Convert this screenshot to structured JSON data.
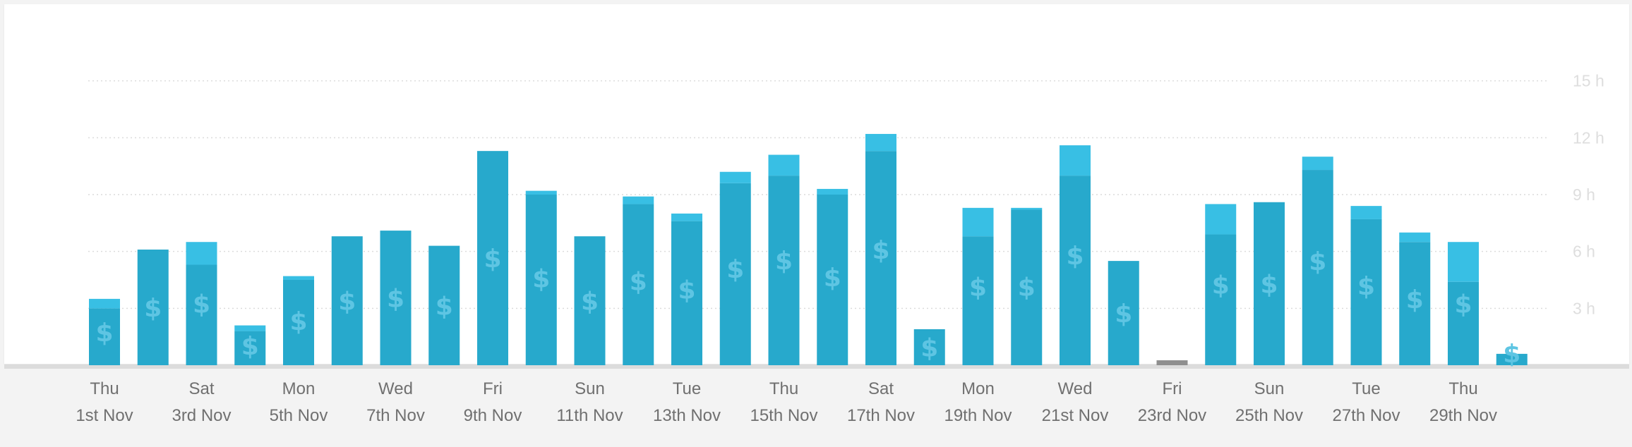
{
  "colors": {
    "billable": "#27a9cc",
    "non_billable": "#38bfe4",
    "empty_day": "#8f8f8f",
    "panel": "#ffffff",
    "background": "#f3f3f3",
    "grid": "#dcdcdc",
    "tick_text": "#707070",
    "y_tick_text": "#dedede"
  },
  "icons": {
    "billable_marker": "dollar-sign-icon"
  },
  "chart_data": {
    "type": "bar",
    "stacked": true,
    "grid": true,
    "ylim": [
      0,
      18
    ],
    "y_ticks": [
      3,
      6,
      9,
      12,
      15
    ],
    "y_tick_labels": [
      "3 h",
      "6 h",
      "9 h",
      "12 h",
      "15 h"
    ],
    "y_axis_position": "right",
    "dates": [
      "2018-11-01",
      "2018-11-02",
      "2018-11-03",
      "2018-11-04",
      "2018-11-05",
      "2018-11-06",
      "2018-11-07",
      "2018-11-08",
      "2018-11-09",
      "2018-11-10",
      "2018-11-11",
      "2018-11-12",
      "2018-11-13",
      "2018-11-14",
      "2018-11-15",
      "2018-11-16",
      "2018-11-17",
      "2018-11-18",
      "2018-11-19",
      "2018-11-20",
      "2018-11-21",
      "2018-11-22",
      "2018-11-23",
      "2018-11-24",
      "2018-11-25",
      "2018-11-26",
      "2018-11-27",
      "2018-11-28",
      "2018-11-29",
      "2018-11-30"
    ],
    "x_tick_labels": [
      {
        "day": "Thu",
        "date": "1st Nov"
      },
      {
        "day": "Sat",
        "date": "3rd Nov"
      },
      {
        "day": "Mon",
        "date": "5th Nov"
      },
      {
        "day": "Wed",
        "date": "7th Nov"
      },
      {
        "day": "Fri",
        "date": "9th Nov"
      },
      {
        "day": "Sun",
        "date": "11th Nov"
      },
      {
        "day": "Tue",
        "date": "13th Nov"
      },
      {
        "day": "Thu",
        "date": "15th Nov"
      },
      {
        "day": "Sat",
        "date": "17th Nov"
      },
      {
        "day": "Mon",
        "date": "19th Nov"
      },
      {
        "day": "Wed",
        "date": "21st Nov"
      },
      {
        "day": "Fri",
        "date": "23rd Nov"
      },
      {
        "day": "Sun",
        "date": "25th Nov"
      },
      {
        "day": "Tue",
        "date": "27th Nov"
      },
      {
        "day": "Thu",
        "date": "29th Nov"
      }
    ],
    "series": [
      {
        "values": [
          3.0,
          6.1,
          5.3,
          1.8,
          4.5,
          6.8,
          7.1,
          6.3,
          11.3,
          9.0,
          6.8,
          8.5,
          7.6,
          9.6,
          10.0,
          9.0,
          11.3,
          1.9,
          6.8,
          8.2,
          10.0,
          5.5,
          0,
          6.9,
          8.6,
          10.3,
          7.7,
          6.5,
          4.4,
          0.6
        ]
      },
      {
        "values": [
          0.5,
          0,
          1.2,
          0.3,
          0.2,
          0,
          0,
          0,
          0,
          0.2,
          0,
          0.4,
          0.4,
          0.6,
          1.1,
          0.3,
          0.9,
          0,
          1.5,
          0.1,
          1.6,
          0,
          0,
          1.6,
          0,
          0.7,
          0.7,
          0.5,
          2.1,
          0
        ]
      }
    ],
    "empty_days": [
      "2018-11-23"
    ],
    "billable_marker_days": [
      "2018-11-01",
      "2018-11-02",
      "2018-11-03",
      "2018-11-04",
      "2018-11-05",
      "2018-11-06",
      "2018-11-07",
      "2018-11-08",
      "2018-11-09",
      "2018-11-10",
      "2018-11-11",
      "2018-11-12",
      "2018-11-13",
      "2018-11-14",
      "2018-11-15",
      "2018-11-16",
      "2018-11-17",
      "2018-11-18",
      "2018-11-19",
      "2018-11-20",
      "2018-11-21",
      "2018-11-22",
      "2018-11-24",
      "2018-11-25",
      "2018-11-26",
      "2018-11-27",
      "2018-11-28",
      "2018-11-29",
      "2018-11-30"
    ]
  }
}
